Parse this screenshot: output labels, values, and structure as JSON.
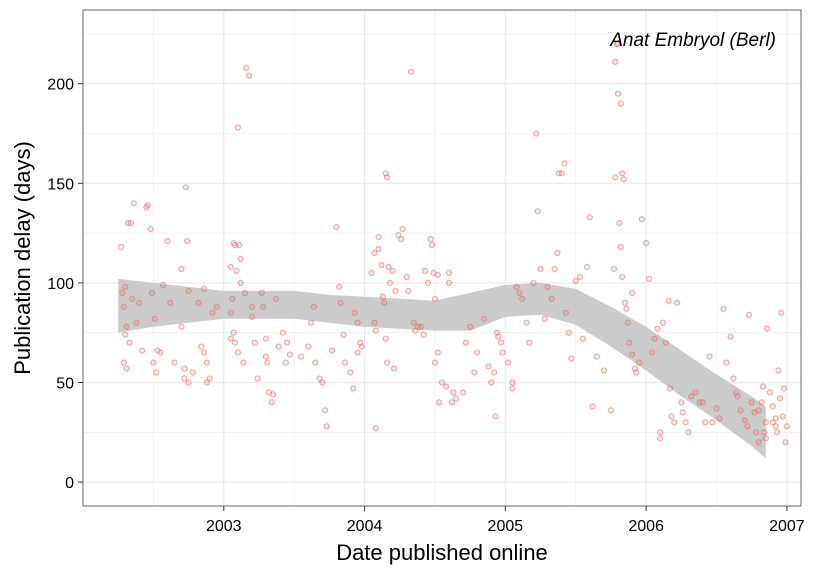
{
  "chart_data": {
    "type": "scatter",
    "title": "",
    "annotation": "Anat Embryol (Berl)",
    "xlabel": "Date published online",
    "ylabel": "Publication delay (days)",
    "xlim": [
      2002.0,
      2007.1
    ],
    "ylim": [
      -12,
      237
    ],
    "x_ticks": [
      2003,
      2004,
      2005,
      2006,
      2007
    ],
    "y_ticks": [
      0,
      50,
      100,
      150,
      200
    ],
    "grid": true,
    "colors": {
      "points": "#e06060",
      "band": "#c8c8c8",
      "grid": "#ebebeb",
      "border": "#7f7f7f"
    },
    "smooth_band": {
      "x": [
        2002.25,
        2002.5,
        2002.75,
        2003.0,
        2003.25,
        2003.5,
        2003.75,
        2004.0,
        2004.25,
        2004.5,
        2004.75,
        2005.0,
        2005.25,
        2005.5,
        2005.75,
        2006.0,
        2006.25,
        2006.5,
        2006.75,
        2006.85
      ],
      "upper": [
        102,
        100,
        98,
        96,
        96,
        96,
        94,
        93,
        92,
        91,
        95,
        99,
        100,
        97,
        88,
        78,
        66,
        54,
        43,
        38
      ],
      "lower": [
        75,
        78,
        80,
        82,
        82,
        82,
        80,
        78,
        77,
        76,
        76,
        83,
        84,
        79,
        68,
        56,
        43,
        31,
        18,
        12
      ]
    },
    "series": [
      {
        "points": [
          [
            2002.27,
            118
          ],
          [
            2002.3,
            98
          ],
          [
            2002.32,
            130
          ],
          [
            2002.34,
            130
          ],
          [
            2002.36,
            140
          ],
          [
            2002.28,
            95
          ],
          [
            2002.29,
            88
          ],
          [
            2002.31,
            78
          ],
          [
            2002.3,
            74
          ],
          [
            2002.33,
            70
          ],
          [
            2002.29,
            60
          ],
          [
            2002.31,
            57
          ],
          [
            2002.35,
            92
          ],
          [
            2002.38,
            80
          ],
          [
            2002.4,
            90
          ],
          [
            2002.42,
            66
          ],
          [
            2002.45,
            138
          ],
          [
            2002.46,
            139
          ],
          [
            2002.48,
            127
          ],
          [
            2002.49,
            95
          ],
          [
            2002.51,
            82
          ],
          [
            2002.53,
            66
          ],
          [
            2002.55,
            65
          ],
          [
            2002.5,
            60
          ],
          [
            2002.52,
            55
          ],
          [
            2002.57,
            99
          ],
          [
            2002.6,
            121
          ],
          [
            2002.62,
            90
          ],
          [
            2002.65,
            60
          ],
          [
            2002.7,
            107
          ],
          [
            2002.73,
            148
          ],
          [
            2002.74,
            121
          ],
          [
            2002.75,
            96
          ],
          [
            2002.7,
            78
          ],
          [
            2002.72,
            57
          ],
          [
            2002.72,
            52
          ],
          [
            2002.75,
            50
          ],
          [
            2002.78,
            55
          ],
          [
            2002.82,
            90
          ],
          [
            2002.84,
            68
          ],
          [
            2002.86,
            97
          ],
          [
            2002.86,
            65
          ],
          [
            2002.88,
            60
          ],
          [
            2002.9,
            52
          ],
          [
            2002.88,
            50
          ],
          [
            2002.92,
            85
          ],
          [
            2002.95,
            88
          ],
          [
            2003.05,
            108
          ],
          [
            2003.07,
            120
          ],
          [
            2003.08,
            119
          ],
          [
            2003.09,
            106
          ],
          [
            2003.06,
            92
          ],
          [
            2003.05,
            85
          ],
          [
            2003.07,
            75
          ],
          [
            2003.05,
            72
          ],
          [
            2003.08,
            70
          ],
          [
            2003.1,
            178
          ],
          [
            2003.11,
            119
          ],
          [
            2003.12,
            112
          ],
          [
            2003.12,
            100
          ],
          [
            2003.15,
            95
          ],
          [
            2003.1,
            65
          ],
          [
            2003.14,
            60
          ],
          [
            2003.16,
            208
          ],
          [
            2003.18,
            204
          ],
          [
            2003.2,
            88
          ],
          [
            2003.2,
            83
          ],
          [
            2003.22,
            70
          ],
          [
            2003.24,
            52
          ],
          [
            2003.27,
            95
          ],
          [
            2003.28,
            88
          ],
          [
            2003.3,
            72
          ],
          [
            2003.3,
            63
          ],
          [
            2003.31,
            60
          ],
          [
            2003.32,
            45
          ],
          [
            2003.34,
            40
          ],
          [
            2003.35,
            44
          ],
          [
            2003.37,
            92
          ],
          [
            2003.39,
            68
          ],
          [
            2003.42,
            75
          ],
          [
            2003.45,
            70
          ],
          [
            2003.47,
            64
          ],
          [
            2003.44,
            60
          ],
          [
            2003.55,
            63
          ],
          [
            2003.6,
            68
          ],
          [
            2003.62,
            80
          ],
          [
            2003.64,
            88
          ],
          [
            2003.65,
            60
          ],
          [
            2003.68,
            52
          ],
          [
            2003.7,
            50
          ],
          [
            2003.72,
            36
          ],
          [
            2003.73,
            28
          ],
          [
            2003.77,
            66
          ],
          [
            2003.8,
            128
          ],
          [
            2003.82,
            98
          ],
          [
            2003.83,
            90
          ],
          [
            2003.85,
            74
          ],
          [
            2003.86,
            60
          ],
          [
            2003.9,
            55
          ],
          [
            2003.92,
            47
          ],
          [
            2003.93,
            85
          ],
          [
            2003.95,
            80
          ],
          [
            2003.95,
            65
          ],
          [
            2003.97,
            70
          ],
          [
            2003.98,
            68
          ],
          [
            2004.05,
            105
          ],
          [
            2004.07,
            115
          ],
          [
            2004.07,
            80
          ],
          [
            2004.08,
            76
          ],
          [
            2004.08,
            27
          ],
          [
            2004.1,
            123
          ],
          [
            2004.1,
            117
          ],
          [
            2004.12,
            109
          ],
          [
            2004.13,
            93
          ],
          [
            2004.14,
            90
          ],
          [
            2004.15,
            155
          ],
          [
            2004.16,
            153
          ],
          [
            2004.17,
            108
          ],
          [
            2004.15,
            72
          ],
          [
            2004.16,
            60
          ],
          [
            2004.18,
            100
          ],
          [
            2004.2,
            106
          ],
          [
            2004.21,
            57
          ],
          [
            2004.22,
            96
          ],
          [
            2004.24,
            124
          ],
          [
            2004.26,
            122
          ],
          [
            2004.27,
            127
          ],
          [
            2004.3,
            103
          ],
          [
            2004.31,
            96
          ],
          [
            2004.33,
            206
          ],
          [
            2004.35,
            80
          ],
          [
            2004.36,
            76
          ],
          [
            2004.38,
            78
          ],
          [
            2004.4,
            78
          ],
          [
            2004.42,
            74
          ],
          [
            2004.43,
            106
          ],
          [
            2004.45,
            100
          ],
          [
            2004.47,
            122
          ],
          [
            2004.48,
            119
          ],
          [
            2004.49,
            105
          ],
          [
            2004.5,
            92
          ],
          [
            2004.52,
            104
          ],
          [
            2004.5,
            60
          ],
          [
            2004.52,
            65
          ],
          [
            2004.53,
            40
          ],
          [
            2004.55,
            50
          ],
          [
            2004.58,
            48
          ],
          [
            2004.6,
            105
          ],
          [
            2004.6,
            100
          ],
          [
            2004.62,
            40
          ],
          [
            2004.63,
            45
          ],
          [
            2004.65,
            42
          ],
          [
            2004.7,
            45
          ],
          [
            2004.72,
            70
          ],
          [
            2004.75,
            78
          ],
          [
            2004.78,
            55
          ],
          [
            2004.8,
            65
          ],
          [
            2004.85,
            82
          ],
          [
            2004.88,
            58
          ],
          [
            2004.9,
            50
          ],
          [
            2004.92,
            55
          ],
          [
            2004.93,
            33
          ],
          [
            2004.94,
            75
          ],
          [
            2004.95,
            73
          ],
          [
            2004.97,
            70
          ],
          [
            2004.98,
            65
          ],
          [
            2005.02,
            60
          ],
          [
            2005.05,
            50
          ],
          [
            2005.05,
            47
          ],
          [
            2005.08,
            98
          ],
          [
            2005.1,
            95
          ],
          [
            2005.12,
            92
          ],
          [
            2005.15,
            80
          ],
          [
            2005.17,
            70
          ],
          [
            2005.2,
            100
          ],
          [
            2005.22,
            175
          ],
          [
            2005.23,
            136
          ],
          [
            2005.25,
            107
          ],
          [
            2005.28,
            82
          ],
          [
            2005.3,
            98
          ],
          [
            2005.33,
            92
          ],
          [
            2005.35,
            107
          ],
          [
            2005.37,
            115
          ],
          [
            2005.38,
            155
          ],
          [
            2005.4,
            155
          ],
          [
            2005.42,
            160
          ],
          [
            2005.43,
            85
          ],
          [
            2005.45,
            75
          ],
          [
            2005.47,
            62
          ],
          [
            2005.5,
            101
          ],
          [
            2005.53,
            103
          ],
          [
            2005.55,
            72
          ],
          [
            2005.58,
            108
          ],
          [
            2005.6,
            133
          ],
          [
            2005.62,
            38
          ],
          [
            2005.65,
            63
          ],
          [
            2005.7,
            56
          ],
          [
            2005.75,
            36
          ],
          [
            2005.77,
            107
          ],
          [
            2005.78,
            211
          ],
          [
            2005.79,
            220
          ],
          [
            2005.8,
            220
          ],
          [
            2005.8,
            195
          ],
          [
            2005.82,
            190
          ],
          [
            2005.83,
            155
          ],
          [
            2005.84,
            152
          ],
          [
            2005.78,
            153
          ],
          [
            2005.81,
            130
          ],
          [
            2005.82,
            118
          ],
          [
            2005.83,
            103
          ],
          [
            2005.85,
            90
          ],
          [
            2005.86,
            87
          ],
          [
            2005.87,
            80
          ],
          [
            2005.88,
            70
          ],
          [
            2005.9,
            95
          ],
          [
            2005.9,
            64
          ],
          [
            2005.92,
            57
          ],
          [
            2005.93,
            55
          ],
          [
            2005.95,
            60
          ],
          [
            2005.97,
            132
          ],
          [
            2006.0,
            120
          ],
          [
            2006.02,
            102
          ],
          [
            2006.04,
            65
          ],
          [
            2006.06,
            72
          ],
          [
            2006.08,
            77
          ],
          [
            2006.1,
            25
          ],
          [
            2006.1,
            22
          ],
          [
            2006.12,
            80
          ],
          [
            2006.14,
            70
          ],
          [
            2006.16,
            91
          ],
          [
            2006.17,
            47
          ],
          [
            2006.18,
            33
          ],
          [
            2006.2,
            30
          ],
          [
            2006.22,
            90
          ],
          [
            2006.25,
            40
          ],
          [
            2006.26,
            35
          ],
          [
            2006.28,
            30
          ],
          [
            2006.3,
            25
          ],
          [
            2006.32,
            43
          ],
          [
            2006.35,
            45
          ],
          [
            2006.38,
            40
          ],
          [
            2006.4,
            40
          ],
          [
            2006.42,
            30
          ],
          [
            2006.45,
            63
          ],
          [
            2006.47,
            30
          ],
          [
            2006.5,
            37
          ],
          [
            2006.52,
            32
          ],
          [
            2006.55,
            87
          ],
          [
            2006.57,
            60
          ],
          [
            2006.6,
            73
          ],
          [
            2006.62,
            52
          ],
          [
            2006.64,
            45
          ],
          [
            2006.65,
            43
          ],
          [
            2006.67,
            36
          ],
          [
            2006.7,
            31
          ],
          [
            2006.72,
            28
          ],
          [
            2006.73,
            84
          ],
          [
            2006.75,
            40
          ],
          [
            2006.77,
            35
          ],
          [
            2006.78,
            25
          ],
          [
            2006.8,
            20
          ],
          [
            2006.8,
            36
          ],
          [
            2006.82,
            40
          ],
          [
            2006.83,
            48
          ],
          [
            2006.84,
            25
          ],
          [
            2006.85,
            22
          ],
          [
            2006.85,
            30
          ],
          [
            2006.86,
            77
          ],
          [
            2006.88,
            45
          ],
          [
            2006.9,
            30
          ],
          [
            2006.92,
            28
          ],
          [
            2006.93,
            25
          ],
          [
            2006.94,
            56
          ],
          [
            2006.96,
            85
          ],
          [
            2006.97,
            33
          ],
          [
            2006.98,
            47
          ],
          [
            2006.99,
            20
          ],
          [
            2007.0,
            28
          ],
          [
            2006.9,
            38
          ],
          [
            2006.95,
            42
          ],
          [
            2006.92,
            32
          ]
        ]
      }
    ]
  }
}
